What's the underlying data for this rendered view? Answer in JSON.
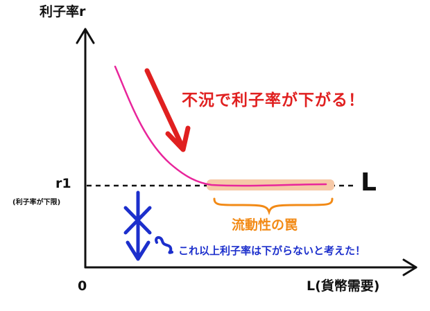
{
  "axes": {
    "y_label": "利子率r",
    "x_label": "L(貨幣需要)",
    "origin": "0"
  },
  "levels": {
    "r1_label": "r1",
    "r1_note": "(利子率が下限)"
  },
  "curve": {
    "label": "L",
    "color": "#e8259b"
  },
  "annotations": {
    "recession": "不況で利子率が下がる！",
    "trap": "流動性の罠",
    "belief": "これ以上利子率は下がらないと考えた！"
  },
  "colors": {
    "axis": "#111111",
    "recession": "#e02020",
    "trap_brace": "#f28a16",
    "trap_highlight": "#f6c9a8",
    "belief": "#1c2fcc"
  }
}
